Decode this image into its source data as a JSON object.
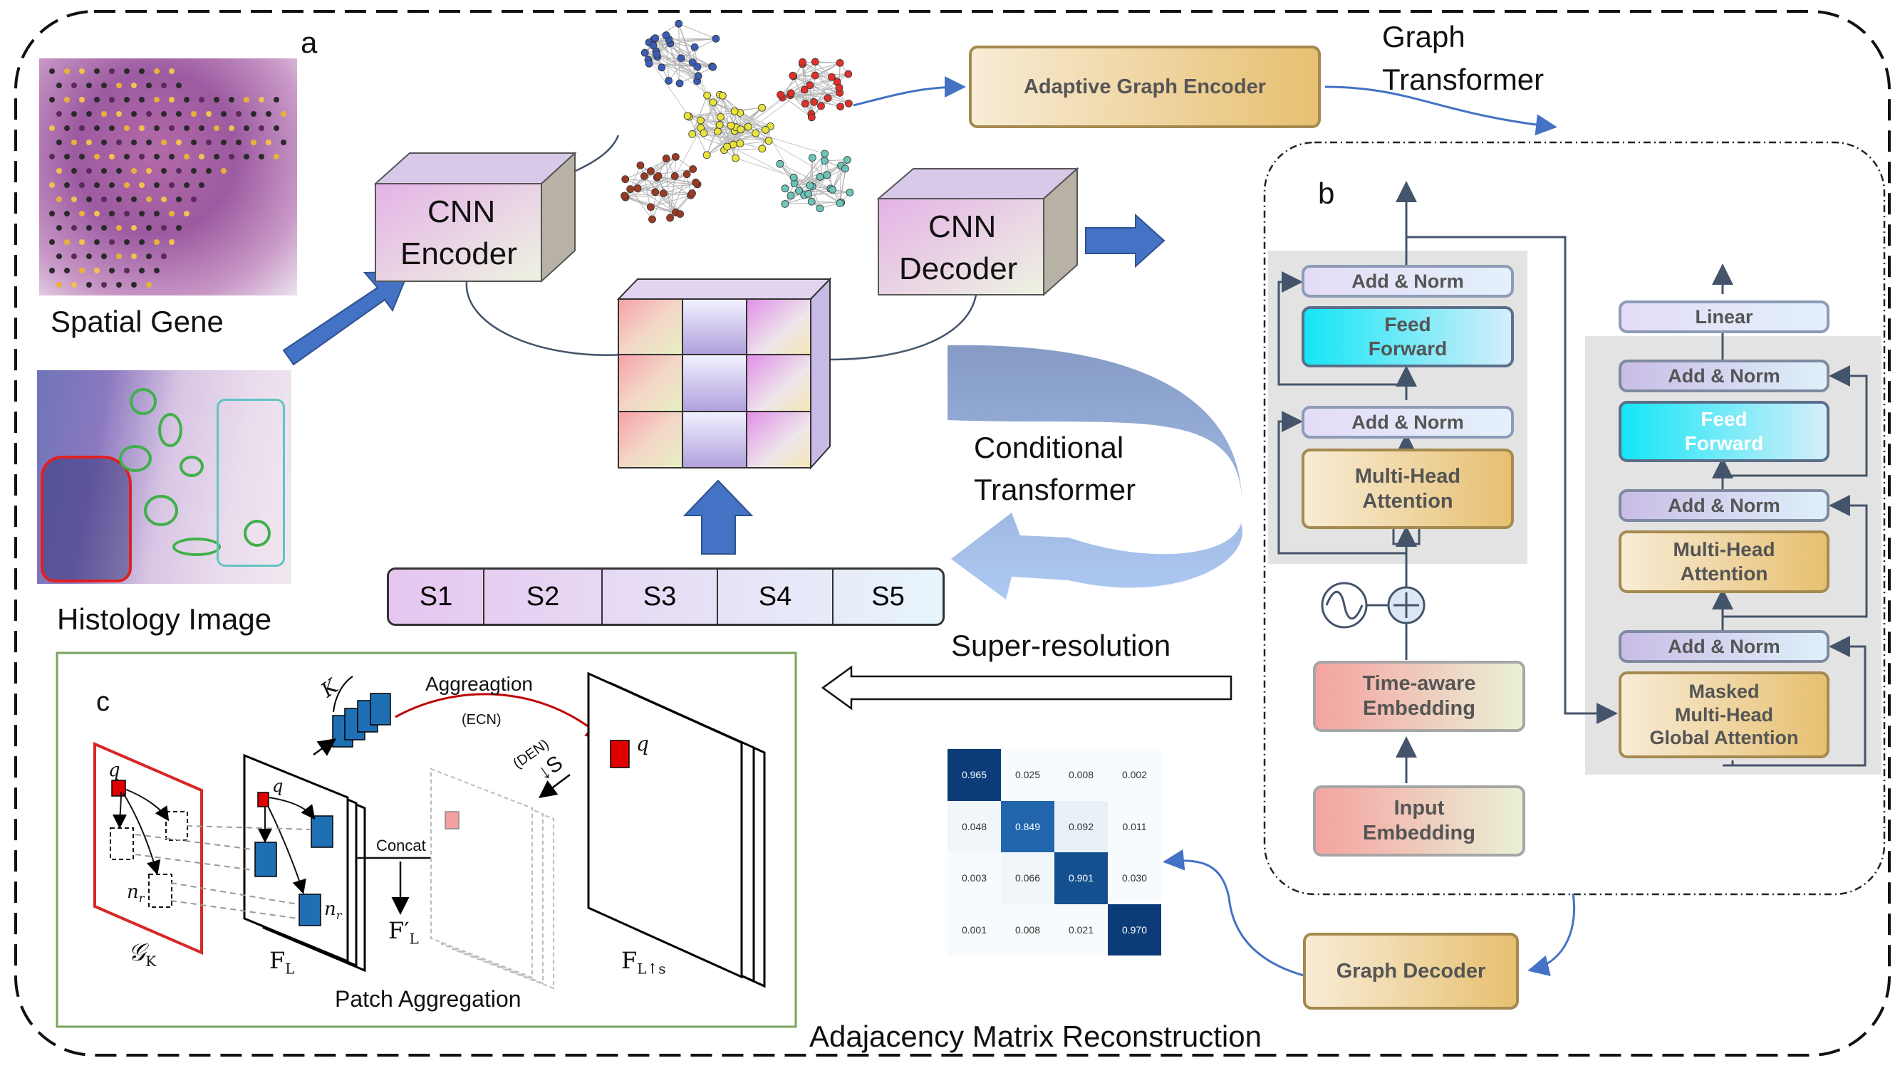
{
  "labels": {
    "a": "a",
    "b": "b",
    "c": "c",
    "spatial_gene": "Spatial Gene",
    "histology_image": "Histology Image",
    "graph_transformer": [
      "Graph",
      "Transformer"
    ],
    "conditional_transformer": [
      "Conditional",
      "Transformer"
    ],
    "super_resolution": "Super-resolution",
    "adjacency_caption": "Adajacency Matrix Reconstruction"
  },
  "cnn_encoder": [
    "CNN",
    "Encoder"
  ],
  "cnn_decoder": [
    "CNN",
    "Decoder"
  ],
  "adaptive_graph_encoder": "Adaptive Graph Encoder",
  "graph_decoder": "Graph Decoder",
  "scales": [
    "S1",
    "S2",
    "S3",
    "S4",
    "S5"
  ],
  "encoder_stack": {
    "add_norm": "Add & Norm",
    "feed_forward": [
      "Feed",
      "Forward"
    ],
    "mha": [
      "Multi-Head",
      "Attention"
    ],
    "time_embed": [
      "Time-aware",
      "Embedding"
    ],
    "input_embed": [
      "Input",
      "Embedding"
    ]
  },
  "decoder_stack": {
    "linear": "Linear",
    "add_norm": "Add & Norm",
    "feed_forward": [
      "Feed",
      "Forward"
    ],
    "mha": [
      "Multi-Head",
      "Attention"
    ],
    "masked": [
      "Masked",
      "Multi-Head",
      "Global Attention"
    ]
  },
  "matrix": [
    [
      "0.965",
      "0.025",
      "0.008",
      "0.002"
    ],
    [
      "0.048",
      "0.849",
      "0.092",
      "0.011"
    ],
    [
      "0.003",
      "0.066",
      "0.901",
      "0.030"
    ],
    [
      "0.001",
      "0.008",
      "0.021",
      "0.970"
    ]
  ],
  "matrix_values": [
    [
      0.965,
      0.025,
      0.008,
      0.002
    ],
    [
      0.048,
      0.849,
      0.092,
      0.011
    ],
    [
      0.003,
      0.066,
      0.901,
      0.03
    ],
    [
      0.001,
      0.008,
      0.021,
      0.97
    ]
  ],
  "panel_c": {
    "aggregation": "Aggreagtion",
    "ecn": "(ECN)",
    "den": "(DEN)",
    "down_s": "↓S",
    "k": "K",
    "concat": "Concat",
    "patch_aggregation": "Patch Aggregation",
    "q": "q",
    "nr": "n",
    "nr_sub": "r",
    "gk": "𝒢",
    "gk_sub": "K",
    "fl": "F",
    "fl_sub": "L",
    "fl_prime": "F′",
    "fl_prime_sub": "L",
    "fls": "F",
    "fls_sub": "L↑s"
  },
  "colors": {
    "arrow_blue": "#4472c4",
    "frame_dash": "#111111",
    "panel_c_border": "#7aa35b",
    "red_frame": "#d62828",
    "matrix_dark": "#08306b"
  }
}
